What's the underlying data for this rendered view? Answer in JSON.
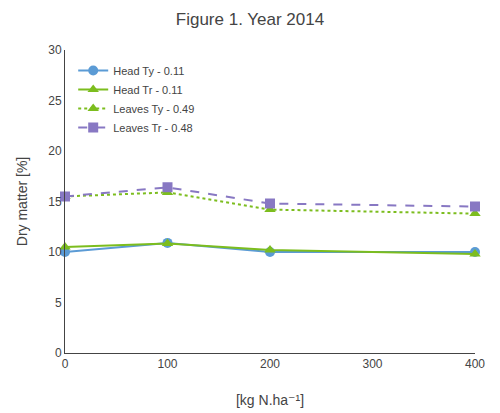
{
  "chart_data": {
    "type": "line",
    "title": "Figure 1. Year 2014",
    "xlabel": "[kg N.ha⁻¹]",
    "ylabel": "Dry matter [%]",
    "x": [
      0,
      100,
      200,
      400
    ],
    "series": [
      {
        "name": "Head Ty - 0.11",
        "color": "#5b9bd5",
        "marker": "circle",
        "line_style": "solid",
        "values": [
          10.0,
          10.9,
          10.0,
          10.0
        ]
      },
      {
        "name": "Head Tr - 0.11",
        "color": "#7cbd1e",
        "marker": "triangle-up",
        "line_style": "solid",
        "values": [
          10.5,
          10.85,
          10.2,
          9.8
        ]
      },
      {
        "name": "Leaves Ty - 0.49",
        "color": "#7cbd1e",
        "marker": "triangle-up",
        "line_style": "dotted",
        "values": [
          15.5,
          15.9,
          14.2,
          13.8
        ]
      },
      {
        "name": "Leaves Tr - 0.48",
        "color": "#8878c3",
        "marker": "square-x",
        "line_style": "dashed",
        "values": [
          15.5,
          16.4,
          14.8,
          14.5
        ]
      }
    ],
    "xlim": [
      0,
      400
    ],
    "xticks": [
      0,
      100,
      200,
      300,
      400
    ],
    "ylim": [
      0,
      30
    ],
    "yticks": [
      0,
      5,
      10,
      15,
      20,
      25,
      30
    ],
    "grid": false,
    "legend": "upper left"
  }
}
